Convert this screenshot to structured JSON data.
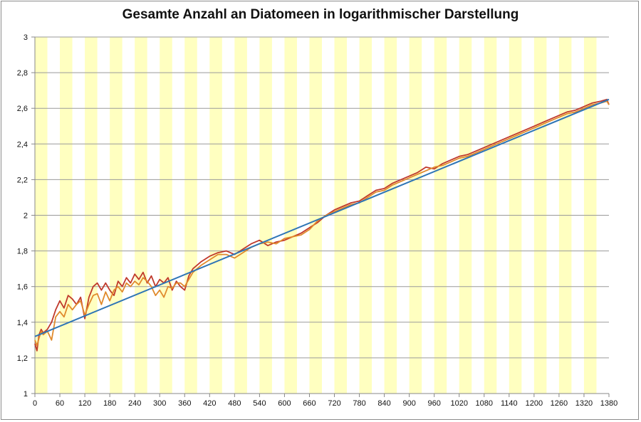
{
  "chart_data": {
    "type": "line",
    "title": "Gesamte Anzahl an Diatomeen in logarithmischer Darstellung",
    "xlabel": "",
    "ylabel": "",
    "xlim": [
      0,
      1380
    ],
    "ylim": [
      1,
      3
    ],
    "x_ticks": [
      0,
      60,
      120,
      180,
      240,
      300,
      360,
      420,
      480,
      540,
      600,
      660,
      720,
      780,
      840,
      900,
      960,
      1020,
      1080,
      1140,
      1200,
      1260,
      1320,
      1380
    ],
    "x_tick_labels": [
      "0",
      "60",
      "120",
      "180",
      "240",
      "300",
      "360",
      "420",
      "480",
      "540",
      "600",
      "660",
      "720",
      "780",
      "840",
      "900",
      "960",
      "1020",
      "1080",
      "1140",
      "1200",
      "1260",
      "1320",
      "1380"
    ],
    "y_ticks": [
      1,
      1.2,
      1.4,
      1.6,
      1.8,
      2,
      2.2,
      2.4,
      2.6,
      2.8,
      3
    ],
    "y_tick_labels": [
      "1",
      "1,2",
      "1,4",
      "1,6",
      "1,8",
      "2",
      "2,2",
      "2,4",
      "2,6",
      "2,8",
      "3"
    ],
    "grid": "horizontal",
    "legend": "none",
    "shaded_bands": [
      [
        0,
        30
      ],
      [
        60,
        90
      ],
      [
        120,
        150
      ],
      [
        180,
        210
      ],
      [
        240,
        270
      ],
      [
        300,
        330
      ],
      [
        360,
        390
      ],
      [
        420,
        450
      ],
      [
        480,
        510
      ],
      [
        540,
        570
      ],
      [
        600,
        630
      ],
      [
        660,
        690
      ],
      [
        720,
        750
      ],
      [
        780,
        810
      ],
      [
        840,
        870
      ],
      [
        900,
        930
      ],
      [
        960,
        990
      ],
      [
        1020,
        1050
      ],
      [
        1080,
        1110
      ],
      [
        1140,
        1170
      ],
      [
        1200,
        1230
      ],
      [
        1260,
        1290
      ],
      [
        1320,
        1350
      ]
    ],
    "band_color": "#ffffc0",
    "series": [
      {
        "color": "#c0392b",
        "x": [
          0,
          5,
          10,
          15,
          20,
          30,
          40,
          50,
          60,
          70,
          80,
          90,
          100,
          110,
          120,
          130,
          140,
          150,
          160,
          170,
          180,
          190,
          200,
          210,
          220,
          230,
          240,
          250,
          260,
          270,
          280,
          290,
          300,
          310,
          320,
          330,
          340,
          350,
          360,
          370,
          380,
          390,
          400,
          420,
          440,
          460,
          480,
          500,
          520,
          540,
          560,
          580,
          600,
          620,
          640,
          660,
          680,
          700,
          720,
          740,
          760,
          780,
          800,
          820,
          840,
          860,
          880,
          900,
          920,
          940,
          960,
          980,
          1000,
          1020,
          1040,
          1060,
          1080,
          1100,
          1120,
          1140,
          1160,
          1180,
          1200,
          1220,
          1240,
          1260,
          1280,
          1300,
          1320,
          1340,
          1360,
          1375,
          1380
        ],
        "y": [
          1.28,
          1.24,
          1.33,
          1.36,
          1.34,
          1.36,
          1.4,
          1.47,
          1.52,
          1.48,
          1.55,
          1.53,
          1.5,
          1.54,
          1.42,
          1.54,
          1.6,
          1.62,
          1.58,
          1.62,
          1.58,
          1.55,
          1.63,
          1.6,
          1.65,
          1.62,
          1.67,
          1.64,
          1.68,
          1.62,
          1.66,
          1.6,
          1.64,
          1.62,
          1.65,
          1.58,
          1.63,
          1.6,
          1.58,
          1.66,
          1.7,
          1.72,
          1.74,
          1.77,
          1.79,
          1.8,
          1.78,
          1.81,
          1.84,
          1.86,
          1.83,
          1.85,
          1.86,
          1.88,
          1.9,
          1.93,
          1.96,
          2.0,
          2.03,
          2.05,
          2.07,
          2.08,
          2.11,
          2.14,
          2.15,
          2.18,
          2.2,
          2.22,
          2.24,
          2.27,
          2.26,
          2.29,
          2.31,
          2.33,
          2.34,
          2.36,
          2.38,
          2.4,
          2.42,
          2.44,
          2.46,
          2.48,
          2.5,
          2.52,
          2.54,
          2.56,
          2.58,
          2.59,
          2.61,
          2.63,
          2.64,
          2.65,
          2.62
        ]
      },
      {
        "color": "#e08a2c",
        "x": [
          0,
          5,
          10,
          15,
          20,
          30,
          40,
          50,
          60,
          70,
          80,
          90,
          100,
          110,
          120,
          130,
          140,
          150,
          160,
          170,
          180,
          190,
          200,
          210,
          220,
          230,
          240,
          250,
          260,
          270,
          280,
          290,
          300,
          310,
          320,
          330,
          340,
          350,
          360,
          370,
          380,
          390,
          400,
          420,
          440,
          460,
          480,
          500,
          520,
          540,
          560,
          580,
          600,
          620,
          640,
          660,
          680,
          700,
          720,
          740,
          760,
          780,
          800,
          820,
          840,
          860,
          880,
          900,
          920,
          940,
          960,
          980,
          1000,
          1020,
          1040,
          1060,
          1080,
          1100,
          1120,
          1140,
          1160,
          1180,
          1200,
          1220,
          1240,
          1260,
          1280,
          1300,
          1320,
          1340,
          1360,
          1375,
          1380
        ],
        "y": [
          1.3,
          1.27,
          1.31,
          1.35,
          1.33,
          1.35,
          1.3,
          1.43,
          1.46,
          1.43,
          1.5,
          1.47,
          1.5,
          1.52,
          1.44,
          1.5,
          1.55,
          1.56,
          1.5,
          1.57,
          1.52,
          1.58,
          1.6,
          1.57,
          1.62,
          1.6,
          1.63,
          1.61,
          1.65,
          1.63,
          1.6,
          1.55,
          1.58,
          1.54,
          1.6,
          1.59,
          1.62,
          1.62,
          1.6,
          1.64,
          1.68,
          1.7,
          1.72,
          1.75,
          1.78,
          1.78,
          1.76,
          1.79,
          1.82,
          1.84,
          1.85,
          1.84,
          1.87,
          1.88,
          1.89,
          1.92,
          1.97,
          2.0,
          2.02,
          2.04,
          2.06,
          2.07,
          2.1,
          2.13,
          2.14,
          2.17,
          2.19,
          2.21,
          2.23,
          2.25,
          2.27,
          2.28,
          2.3,
          2.32,
          2.33,
          2.35,
          2.37,
          2.39,
          2.41,
          2.43,
          2.45,
          2.47,
          2.49,
          2.51,
          2.53,
          2.55,
          2.57,
          2.58,
          2.6,
          2.62,
          2.63,
          2.64,
          2.62
        ]
      },
      {
        "color": "#2e75b6",
        "x": [
          0,
          1380
        ],
        "y": [
          1.32,
          2.65
        ]
      }
    ]
  }
}
